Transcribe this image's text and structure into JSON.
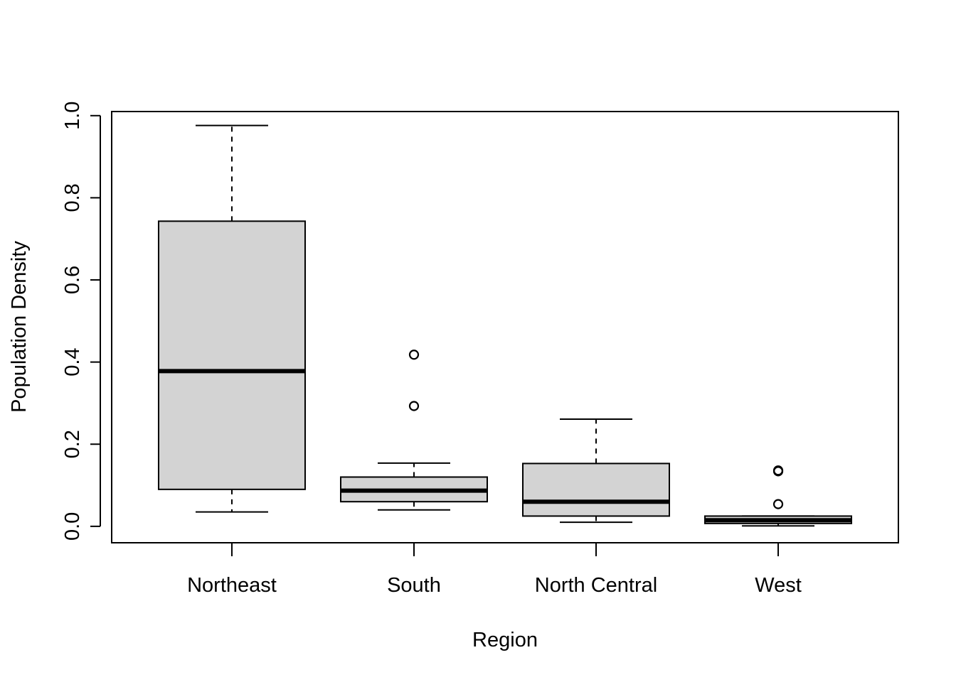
{
  "chart_data": {
    "type": "boxplot",
    "title": "",
    "xlabel": "Region",
    "ylabel": "Population Density",
    "ylim": [
      -0.04,
      1.01
    ],
    "yticks": [
      "0.0",
      "0.2",
      "0.4",
      "0.6",
      "0.8",
      "1.0"
    ],
    "box_color": "#d3d3d3",
    "categories": [
      "Northeast",
      "South",
      "North Central",
      "West"
    ],
    "boxes": [
      {
        "name": "Northeast",
        "whisker_low": 0.035,
        "q1": 0.09,
        "median": 0.378,
        "q3": 0.743,
        "whisker_high": 0.976,
        "outliers": []
      },
      {
        "name": "South",
        "whisker_low": 0.04,
        "q1": 0.06,
        "median": 0.087,
        "q3": 0.12,
        "whisker_high": 0.154,
        "outliers": [
          0.418,
          0.293
        ]
      },
      {
        "name": "North Central",
        "whisker_low": 0.01,
        "q1": 0.025,
        "median": 0.06,
        "q3": 0.153,
        "whisker_high": 0.261,
        "outliers": []
      },
      {
        "name": "West",
        "whisker_low": 0.001,
        "q1": 0.007,
        "median": 0.015,
        "q3": 0.025,
        "whisker_high": 0.025,
        "outliers": [
          0.136,
          0.134,
          0.054
        ]
      }
    ]
  }
}
